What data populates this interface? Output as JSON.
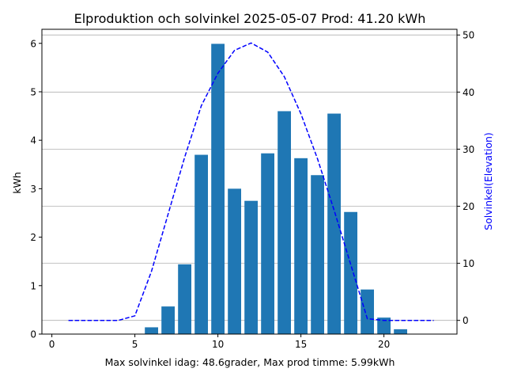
{
  "chart_data": {
    "type": "bar",
    "title": "Elproduktion och solvinkel 2025-05-07 Prod: 41.20 kWh",
    "xlabel": "Max solvinkel idag: 48.6grader, Max prod timme: 5.99kWh",
    "ylabel": "kWh",
    "y2label": "Solvinkel(Elevation)",
    "xlim": [
      -0.6,
      24.4
    ],
    "ylim": [
      0,
      6.29
    ],
    "y2lim": [
      -2.4,
      51.0
    ],
    "xticks": [
      0,
      5,
      10,
      15,
      20
    ],
    "yticks": [
      0,
      1,
      2,
      3,
      4,
      5,
      6
    ],
    "y2ticks": [
      0,
      10,
      20,
      30,
      40,
      50
    ],
    "grid": "horizontal, from secondary axis",
    "colors": {
      "bars": "#1f77b4",
      "line": "#0000ff",
      "grid": "#b0b0b0"
    },
    "series": [
      {
        "type": "bar",
        "axis": "left",
        "x": [
          6,
          7,
          8,
          9,
          10,
          11,
          12,
          13,
          14,
          15,
          16,
          17,
          18,
          19,
          20,
          21
        ],
        "values": [
          0.14,
          0.57,
          1.44,
          3.7,
          5.99,
          3.0,
          2.75,
          3.73,
          4.6,
          3.63,
          3.28,
          4.55,
          2.52,
          0.92,
          0.34,
          0.1
        ]
      },
      {
        "type": "line",
        "axis": "right",
        "style": "dashed",
        "x": [
          1,
          2,
          3,
          4,
          5,
          6,
          7,
          8,
          9,
          10,
          11,
          12,
          13,
          14,
          15,
          16,
          17,
          18,
          19,
          20,
          21,
          22,
          23
        ],
        "values": [
          0,
          0,
          0,
          0,
          0.8,
          8.6,
          18.6,
          28.6,
          37.6,
          43.3,
          47.3,
          48.6,
          47.0,
          42.7,
          36.2,
          28.3,
          19.3,
          9.8,
          0.3,
          0,
          0,
          0,
          0
        ]
      }
    ]
  }
}
